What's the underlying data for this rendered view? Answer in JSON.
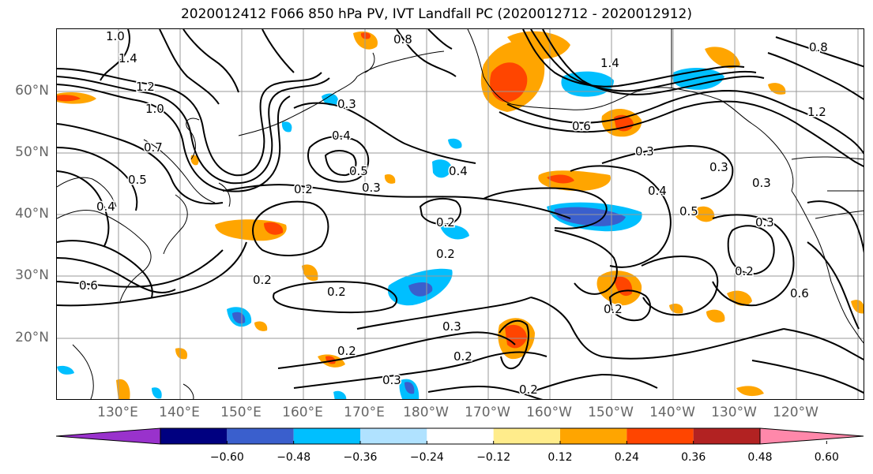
{
  "title": "2020012412 F066 850 hPa PV, IVT Landfall PC (2020012712 - 2020012912)",
  "lat_labels": [
    "60°N",
    "50°N",
    "40°N",
    "30°N",
    "20°N"
  ],
  "lon_labels": [
    "130°E",
    "140°E",
    "150°E",
    "160°E",
    "170°E",
    "180°W",
    "170°W",
    "160°W",
    "150°W",
    "140°W",
    "130°W",
    "120°W"
  ],
  "colorbar": {
    "ticks": [
      "−0.60",
      "−0.48",
      "−0.36",
      "−0.24",
      "−0.12",
      "0.12",
      "0.24",
      "0.36",
      "0.48",
      "0.60"
    ],
    "colors": [
      "#9932cc",
      "#000080",
      "#3a5fcd",
      "#00bfff",
      "#b0e2ff",
      "#ffffff",
      "#ffec8b",
      "#ffa500",
      "#ff4500",
      "#b22222",
      "#ff88aa"
    ]
  },
  "contour_labels": [
    "1.0",
    "1.4",
    "0.8",
    "1.2",
    "1.0",
    "0.3",
    "0.4",
    "0.5",
    "0.2",
    "0.3",
    "0.4",
    "0.2",
    "1.4",
    "0.6",
    "0.3",
    "0.3",
    "0.4",
    "0.5",
    "0.3",
    "0.2",
    "0.2",
    "0.2",
    "0.3",
    "0.2",
    "0.2",
    "0.2",
    "0.3",
    "0.2",
    "0.6",
    "0.6",
    "0.4",
    "0.5",
    "0.7",
    "0.2",
    "1.2",
    "0.8",
    "0.3"
  ]
}
